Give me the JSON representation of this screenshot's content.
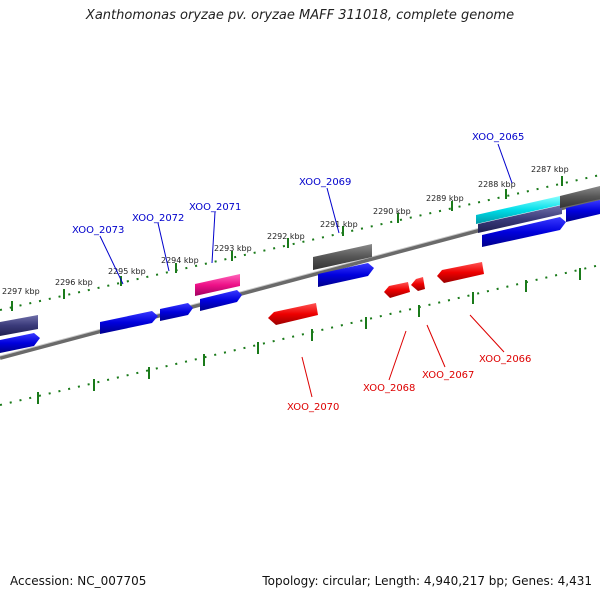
{
  "header": {
    "title": "Xanthomonas oryzae pv. oryzae MAFF 311018, complete genome"
  },
  "footer": {
    "accession": "Accession: NC_007705",
    "topology": "Topology: circular; Length: 4,940,217 bp; Genes: 4,431"
  },
  "colors": {
    "plus_strand": "#0000e0",
    "minus_strand": "#ff0000",
    "gene_grey": "#555555",
    "gene_slate": "#3a3a7a",
    "gene_pink": "#ee1188",
    "gene_cyan": "#00d8e8",
    "tick_green": "#1a7a1a",
    "backbone": "#808080"
  },
  "scale_labels": [
    "2287 kbp",
    "2288 kbp",
    "2289 kbp",
    "2290 kbp",
    "2291 kbp",
    "2292 kbp",
    "2293 kbp",
    "2294 kbp",
    "2295 kbp",
    "2296 kbp",
    "2297 kbp"
  ],
  "gene_labels": {
    "plus": [
      "XOO_2065",
      "XOO_2069",
      "XOO_2071",
      "XOO_2072",
      "XOO_2073"
    ],
    "minus": [
      "XOO_2066",
      "XOO_2067",
      "XOO_2068",
      "XOO_2070"
    ]
  }
}
